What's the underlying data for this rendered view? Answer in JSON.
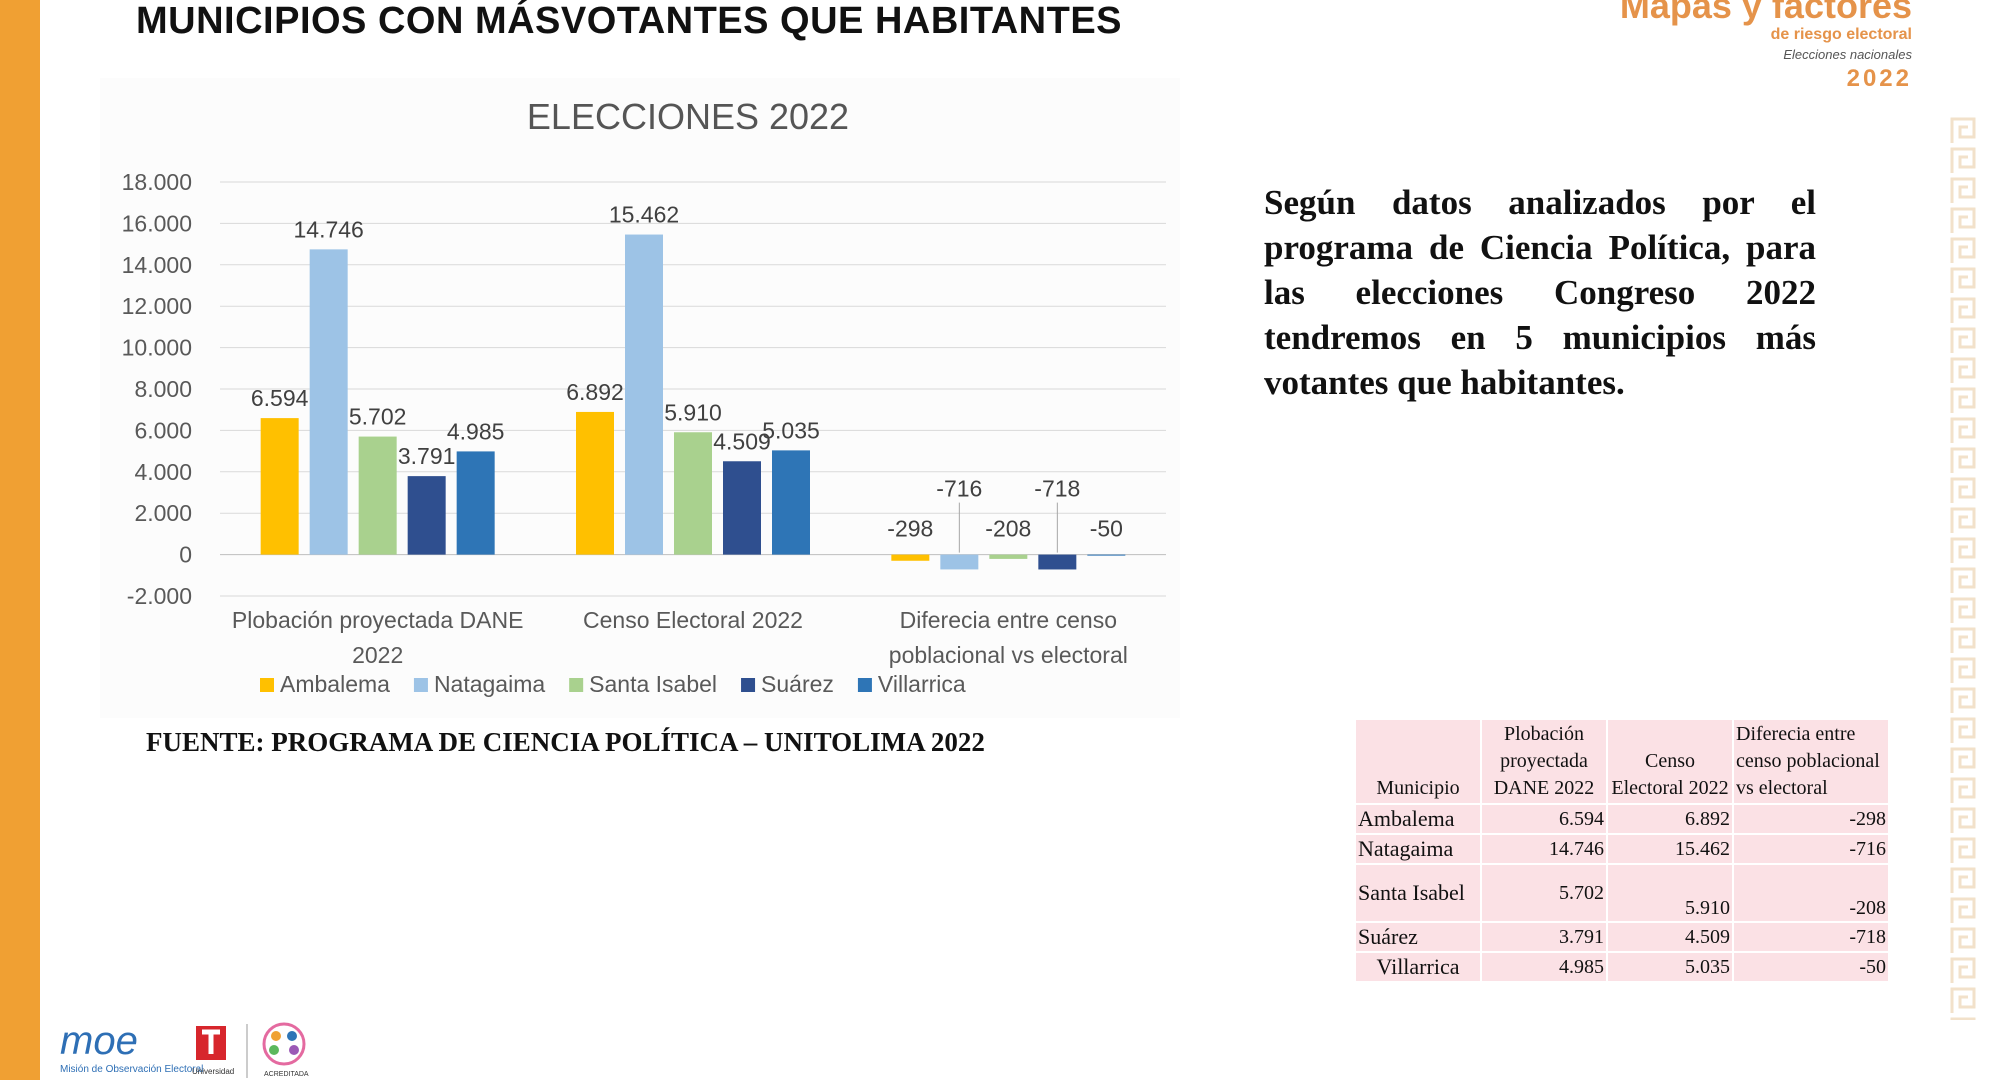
{
  "slide_title": "MUNICIPIOS CON MÁSVOTANTES QUE HABITANTES",
  "brand": {
    "line1": "Mapas y factores",
    "line2": "de riesgo electoral",
    "line3": "Elecciones nacionales",
    "year": "2022"
  },
  "chart_data": {
    "type": "bar",
    "title": "ELECCIONES 2022",
    "categories": [
      "Plobación proyectada DANE 2022",
      "Censo Electoral 2022",
      "Diferecia entre censo poblacional vs electoral"
    ],
    "category_lines": [
      [
        "Plobación proyectada DANE",
        "2022"
      ],
      [
        "Censo Electoral 2022"
      ],
      [
        "Diferecia entre censo",
        "poblacional vs electoral"
      ]
    ],
    "series": [
      {
        "name": "Ambalema",
        "values": [
          6594,
          6892,
          -298
        ],
        "labels": [
          "6.594",
          "6.892",
          "-298"
        ],
        "color": "#ffc000"
      },
      {
        "name": "Natagaima",
        "values": [
          14746,
          15462,
          -716
        ],
        "labels": [
          "14.746",
          "15.462",
          "-716"
        ],
        "color": "#9dc3e6"
      },
      {
        "name": "Santa Isabel",
        "values": [
          5702,
          5910,
          -208
        ],
        "labels": [
          "5.702",
          "5.910",
          "-208"
        ],
        "color": "#a9d18e"
      },
      {
        "name": "Suárez",
        "values": [
          3791,
          4509,
          -718
        ],
        "labels": [
          "3.791",
          "4.509",
          "-718"
        ],
        "color": "#2f4f8f"
      },
      {
        "name": "Villarrica",
        "values": [
          4985,
          5035,
          -50
        ],
        "labels": [
          "4.985",
          "5.035",
          "-50"
        ],
        "color": "#2e75b6"
      }
    ],
    "ylim": [
      -2000,
      18000
    ],
    "yticks": [
      -2000,
      0,
      2000,
      4000,
      6000,
      8000,
      10000,
      12000,
      14000,
      16000,
      18000
    ],
    "ytick_labels": [
      "-2.000",
      "0",
      "2.000",
      "4.000",
      "6.000",
      "8.000",
      "10.000",
      "12.000",
      "14.000",
      "16.000",
      "18.000"
    ],
    "xlabel": "",
    "ylabel": "",
    "grid": true,
    "legend": "bottom"
  },
  "body_text": "Según datos analizados por el programa de Ciencia Política, para las elecciones Congreso 2022 tendremos en 5 municipios más votantes que habitantes.",
  "source_text": "FUENTE: PROGRAMA DE CIENCIA POLÍTICA – UNITOLIMA 2022",
  "table": {
    "headers": [
      "Municipio",
      "Plobación proyectada DANE 2022",
      "Censo Electoral 2022",
      "Diferecia entre censo poblacional vs electoral"
    ],
    "rows": [
      [
        "Ambalema",
        "6.594",
        "6.892",
        "-298"
      ],
      [
        "Natagaima",
        "14.746",
        "15.462",
        "-716"
      ],
      [
        "Santa Isabel",
        "5.702",
        "5.910",
        "-208"
      ],
      [
        "Suárez",
        "3.791",
        "4.509",
        "-718"
      ],
      [
        "Villarrica",
        "4.985",
        "5.035",
        "-50"
      ]
    ]
  },
  "logos": {
    "moe_text": "moe",
    "moe_caption": "Misión de Observación Electoral",
    "university_caption": "Universidad",
    "accredited_caption": "ACREDITADA"
  },
  "colors": {
    "accent_orange": "#f0a033",
    "brand_orange": "#e5934a",
    "table_bg": "#fbe1e5"
  }
}
